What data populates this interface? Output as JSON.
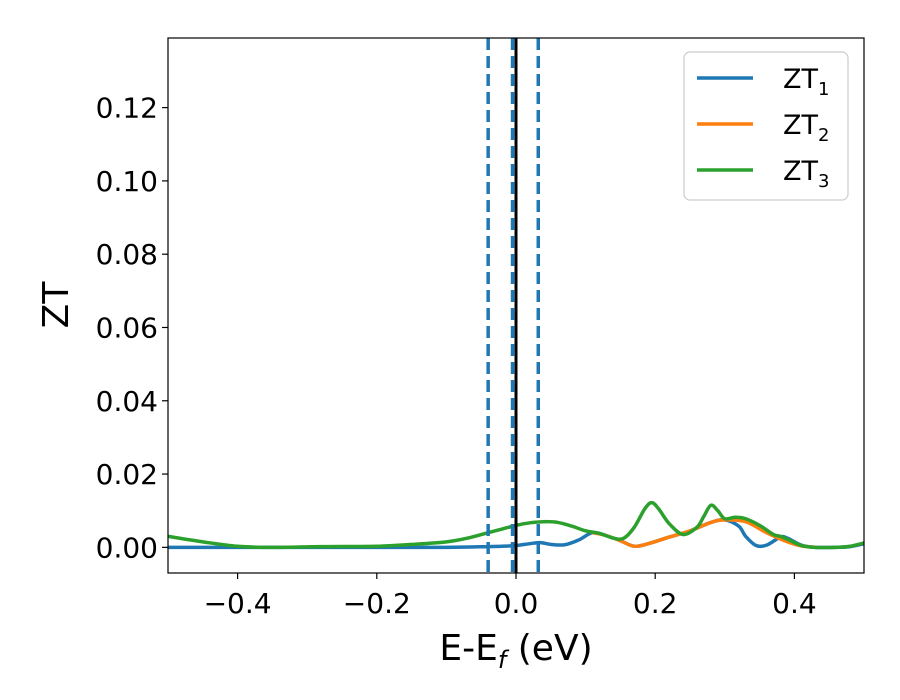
{
  "chart_data": {
    "type": "line",
    "title": "",
    "xlabel": "E-E",
    "xlabel_sub": "f",
    "xlabel_unit": " (eV)",
    "ylabel": "ZT",
    "xlim": [
      -0.5,
      0.5
    ],
    "ylim": [
      -0.007,
      0.139
    ],
    "x_ticks": [
      -0.4,
      -0.2,
      0.0,
      0.2,
      0.4
    ],
    "x_tick_labels": [
      "−0.4",
      "−0.2",
      "0.0",
      "0.2",
      "0.4"
    ],
    "y_ticks": [
      0.0,
      0.02,
      0.04,
      0.06,
      0.08,
      0.1,
      0.12
    ],
    "y_tick_labels": [
      "0.00",
      "0.02",
      "0.04",
      "0.06",
      "0.08",
      "0.10",
      "0.12"
    ],
    "grid": false,
    "legend_position": "top-right",
    "vertical_lines": [
      {
        "x": -0.04,
        "style": "dashed",
        "color": "#1f77b4"
      },
      {
        "x": -0.005,
        "style": "dashed",
        "color": "#1f77b4"
      },
      {
        "x": 0.032,
        "style": "dashed",
        "color": "#1f77b4"
      },
      {
        "x": 0.0,
        "style": "solid",
        "color": "#000000"
      }
    ],
    "series": [
      {
        "name": "ZT",
        "sub": "1",
        "color": "#1f77b4",
        "points": [
          [
            -0.5,
            0.0
          ],
          [
            -0.4,
            0.0
          ],
          [
            -0.3,
            0.0
          ],
          [
            -0.2,
            0.0
          ],
          [
            -0.1,
            0.0
          ],
          [
            -0.04,
            0.0002
          ],
          [
            -0.02,
            0.0003
          ],
          [
            0.0,
            0.0005
          ],
          [
            0.02,
            0.001
          ],
          [
            0.035,
            0.0013
          ],
          [
            0.05,
            0.0008
          ],
          [
            0.07,
            0.0007
          ],
          [
            0.09,
            0.002
          ],
          [
            0.11,
            0.004
          ],
          [
            0.13,
            0.0032
          ],
          [
            0.15,
            0.0018
          ],
          [
            0.17,
            0.0003
          ],
          [
            0.19,
            0.001
          ],
          [
            0.22,
            0.0028
          ],
          [
            0.25,
            0.0045
          ],
          [
            0.28,
            0.0068
          ],
          [
            0.3,
            0.0075
          ],
          [
            0.32,
            0.0058
          ],
          [
            0.33,
            0.003
          ],
          [
            0.345,
            0.0005
          ],
          [
            0.36,
            0.0006
          ],
          [
            0.38,
            0.0028
          ],
          [
            0.39,
            0.0025
          ],
          [
            0.41,
            0.0006
          ],
          [
            0.43,
            0.0
          ],
          [
            0.46,
            0.0
          ],
          [
            0.48,
            0.0002
          ],
          [
            0.5,
            0.001
          ]
        ]
      },
      {
        "name": "ZT",
        "sub": "2",
        "color": "#ff7f0e",
        "points": [
          [
            0.11,
            0.004
          ],
          [
            0.13,
            0.0032
          ],
          [
            0.15,
            0.0018
          ],
          [
            0.17,
            0.0003
          ],
          [
            0.19,
            0.001
          ],
          [
            0.22,
            0.0028
          ],
          [
            0.25,
            0.0045
          ],
          [
            0.28,
            0.0068
          ],
          [
            0.3,
            0.0075
          ],
          [
            0.33,
            0.007
          ],
          [
            0.36,
            0.004
          ],
          [
            0.39,
            0.0015
          ],
          [
            0.41,
            0.0004
          ],
          [
            0.43,
            0.0
          ]
        ]
      },
      {
        "name": "ZT",
        "sub": "3",
        "color": "#2ca02c",
        "points": [
          [
            -0.5,
            0.003
          ],
          [
            -0.45,
            0.0015
          ],
          [
            -0.4,
            0.0003
          ],
          [
            -0.35,
            0.0
          ],
          [
            -0.28,
            0.0002
          ],
          [
            -0.2,
            0.0003
          ],
          [
            -0.15,
            0.0008
          ],
          [
            -0.1,
            0.0015
          ],
          [
            -0.07,
            0.0025
          ],
          [
            -0.04,
            0.004
          ],
          [
            -0.02,
            0.005
          ],
          [
            0.0,
            0.006
          ],
          [
            0.02,
            0.0067
          ],
          [
            0.04,
            0.007
          ],
          [
            0.06,
            0.0068
          ],
          [
            0.08,
            0.0058
          ],
          [
            0.1,
            0.0045
          ],
          [
            0.12,
            0.0038
          ],
          [
            0.14,
            0.0025
          ],
          [
            0.155,
            0.0025
          ],
          [
            0.17,
            0.0055
          ],
          [
            0.185,
            0.0105
          ],
          [
            0.195,
            0.0122
          ],
          [
            0.205,
            0.0105
          ],
          [
            0.22,
            0.0065
          ],
          [
            0.24,
            0.0035
          ],
          [
            0.26,
            0.0055
          ],
          [
            0.27,
            0.0085
          ],
          [
            0.28,
            0.0115
          ],
          [
            0.29,
            0.01
          ],
          [
            0.3,
            0.0078
          ],
          [
            0.315,
            0.0082
          ],
          [
            0.33,
            0.0078
          ],
          [
            0.35,
            0.006
          ],
          [
            0.37,
            0.0035
          ],
          [
            0.38,
            0.003
          ],
          [
            0.39,
            0.0022
          ],
          [
            0.41,
            0.0005
          ],
          [
            0.43,
            0.0
          ],
          [
            0.46,
            0.0
          ],
          [
            0.48,
            0.0003
          ],
          [
            0.5,
            0.0012
          ]
        ]
      }
    ]
  }
}
